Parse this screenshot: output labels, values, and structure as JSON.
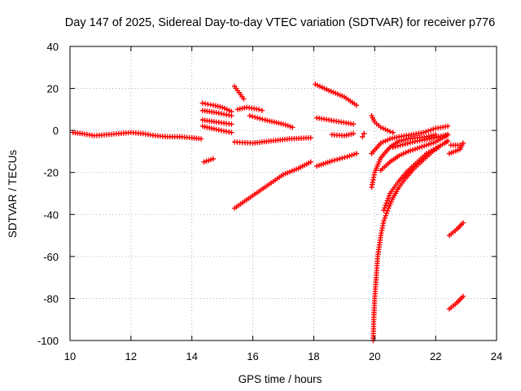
{
  "chart_data": {
    "type": "scatter",
    "title": "Day 147 of 2025, Sidereal Day-to-day VTEC variation (SDTVAR) for receiver p776",
    "xlabel": "GPS time / hours",
    "ylabel": "SDTVAR / TECUs",
    "xlim": [
      10,
      24
    ],
    "ylim": [
      -100,
      40
    ],
    "xticks": [
      10,
      12,
      14,
      16,
      18,
      20,
      22,
      24
    ],
    "yticks": [
      -100,
      -80,
      -60,
      -40,
      -20,
      0,
      20,
      40
    ],
    "xtick_labels": [
      "10",
      "12",
      "14",
      "16",
      "18",
      "20",
      "22",
      "24"
    ],
    "ytick_labels": [
      "-100",
      "-80",
      "-60",
      "-40",
      "-20",
      "0",
      "20",
      "40"
    ],
    "grid": true,
    "marker": "plus",
    "color": "#ff0000",
    "series": [
      {
        "name": "s1",
        "points": [
          [
            10.1,
            -1
          ],
          [
            10.4,
            -1.5
          ],
          [
            10.8,
            -2.5
          ],
          [
            11.2,
            -2
          ],
          [
            11.6,
            -1.5
          ],
          [
            12,
            -1
          ],
          [
            12.4,
            -1.5
          ],
          [
            12.8,
            -2.5
          ],
          [
            13.2,
            -3
          ],
          [
            13.6,
            -3
          ],
          [
            14.0,
            -3.5
          ],
          [
            14.3,
            -4
          ]
        ]
      },
      {
        "name": "s2",
        "points": [
          [
            14.4,
            -15
          ],
          [
            14.7,
            -13.5
          ]
        ]
      },
      {
        "name": "s3",
        "points": [
          [
            14.35,
            13
          ],
          [
            14.7,
            12
          ],
          [
            15.0,
            11
          ],
          [
            15.3,
            9
          ]
        ]
      },
      {
        "name": "s4",
        "points": [
          [
            14.35,
            9.5
          ],
          [
            14.8,
            8.5
          ],
          [
            15.3,
            7
          ]
        ]
      },
      {
        "name": "s5",
        "points": [
          [
            14.35,
            5
          ],
          [
            14.8,
            4
          ],
          [
            15.3,
            3
          ]
        ]
      },
      {
        "name": "s6",
        "points": [
          [
            14.35,
            2
          ],
          [
            14.8,
            0.5
          ],
          [
            15.3,
            -1
          ]
        ]
      },
      {
        "name": "s7",
        "points": [
          [
            15.4,
            21
          ],
          [
            15.7,
            15
          ]
        ]
      },
      {
        "name": "s8",
        "points": [
          [
            15.5,
            10
          ],
          [
            15.8,
            11
          ],
          [
            16.2,
            10
          ],
          [
            16.3,
            9.5
          ]
        ]
      },
      {
        "name": "s9",
        "points": [
          [
            15.9,
            7
          ],
          [
            16.4,
            5
          ],
          [
            17.0,
            3
          ],
          [
            17.3,
            1.5
          ]
        ]
      },
      {
        "name": "s10",
        "points": [
          [
            15.4,
            -5.5
          ],
          [
            16.0,
            -6
          ],
          [
            16.6,
            -5
          ],
          [
            17.2,
            -4
          ],
          [
            17.9,
            -3.5
          ]
        ]
      },
      {
        "name": "s11",
        "points": [
          [
            15.4,
            -37
          ],
          [
            15.8,
            -33
          ],
          [
            16.2,
            -29
          ],
          [
            16.6,
            -25
          ],
          [
            17.0,
            -21
          ],
          [
            17.5,
            -18
          ],
          [
            17.9,
            -15
          ]
        ]
      },
      {
        "name": "s12",
        "points": [
          [
            18.05,
            22
          ],
          [
            18.5,
            19
          ],
          [
            19.0,
            16
          ],
          [
            19.4,
            12
          ]
        ]
      },
      {
        "name": "s13",
        "points": [
          [
            18.1,
            6
          ],
          [
            18.5,
            5
          ],
          [
            18.9,
            4
          ],
          [
            19.3,
            3
          ]
        ]
      },
      {
        "name": "s14",
        "points": [
          [
            18.1,
            -17
          ],
          [
            18.6,
            -14.5
          ],
          [
            19.1,
            -12.5
          ],
          [
            19.4,
            -11
          ]
        ]
      },
      {
        "name": "s15",
        "points": [
          [
            18.6,
            -2
          ],
          [
            19.0,
            -2.5
          ],
          [
            19.3,
            -1.5
          ]
        ]
      },
      {
        "name": "s16",
        "points": [
          [
            19.6,
            -3
          ],
          [
            19.65,
            -1.5
          ]
        ]
      },
      {
        "name": "s17",
        "points": [
          [
            19.9,
            7
          ],
          [
            20.0,
            4
          ],
          [
            20.2,
            1.5
          ],
          [
            20.5,
            -0.5
          ],
          [
            20.6,
            -1
          ]
        ]
      },
      {
        "name": "s18",
        "points": [
          [
            19.95,
            -100
          ],
          [
            19.97,
            -90
          ],
          [
            20.0,
            -80
          ],
          [
            20.05,
            -70
          ],
          [
            20.1,
            -60
          ],
          [
            20.2,
            -50
          ],
          [
            20.3,
            -43
          ],
          [
            20.45,
            -37
          ],
          [
            20.6,
            -32
          ],
          [
            20.8,
            -27
          ],
          [
            21.0,
            -23
          ],
          [
            21.3,
            -18
          ],
          [
            21.6,
            -14
          ],
          [
            21.9,
            -10
          ],
          [
            22.1,
            -8
          ]
        ]
      },
      {
        "name": "s19",
        "points": [
          [
            20.3,
            -38
          ],
          [
            20.5,
            -30
          ],
          [
            20.8,
            -24
          ],
          [
            21.1,
            -19
          ],
          [
            21.4,
            -15
          ],
          [
            21.7,
            -11
          ],
          [
            22.0,
            -8.5
          ],
          [
            22.3,
            -6
          ],
          [
            22.4,
            -5
          ]
        ]
      },
      {
        "name": "s20",
        "points": [
          [
            20.2,
            -19
          ],
          [
            20.5,
            -15
          ],
          [
            20.8,
            -12
          ],
          [
            21.1,
            -10
          ],
          [
            21.4,
            -8.5
          ],
          [
            21.7,
            -7
          ],
          [
            22.0,
            -5.5
          ],
          [
            22.3,
            -3
          ],
          [
            22.4,
            -2
          ]
        ]
      },
      {
        "name": "s21",
        "points": [
          [
            19.9,
            -27
          ],
          [
            20.0,
            -20
          ],
          [
            20.2,
            -13
          ],
          [
            20.5,
            -8
          ],
          [
            20.8,
            -5
          ],
          [
            21.1,
            -4
          ],
          [
            21.4,
            -3.5
          ],
          [
            21.7,
            -3
          ],
          [
            22.0,
            -2
          ]
        ]
      },
      {
        "name": "s22",
        "points": [
          [
            19.9,
            -11
          ],
          [
            20.2,
            -6
          ],
          [
            20.5,
            -4
          ],
          [
            20.8,
            -3
          ],
          [
            21.2,
            -2
          ],
          [
            21.6,
            -1
          ],
          [
            22.0,
            1
          ],
          [
            22.4,
            2
          ]
        ]
      },
      {
        "name": "s23",
        "points": [
          [
            20.6,
            -8
          ],
          [
            21.0,
            -6.5
          ],
          [
            21.4,
            -5
          ],
          [
            21.8,
            -4
          ],
          [
            22.1,
            -3
          ],
          [
            22.4,
            -2
          ]
        ]
      },
      {
        "name": "s24",
        "points": [
          [
            22.45,
            -11
          ],
          [
            22.8,
            -9
          ],
          [
            22.9,
            -6
          ]
        ]
      },
      {
        "name": "s25",
        "points": [
          [
            22.5,
            -7
          ],
          [
            22.8,
            -7
          ]
        ]
      },
      {
        "name": "s26",
        "points": [
          [
            22.45,
            -50
          ],
          [
            22.7,
            -47
          ],
          [
            22.9,
            -44
          ]
        ]
      },
      {
        "name": "s27",
        "points": [
          [
            22.45,
            -85
          ],
          [
            22.7,
            -82
          ],
          [
            22.9,
            -79
          ]
        ]
      }
    ]
  }
}
